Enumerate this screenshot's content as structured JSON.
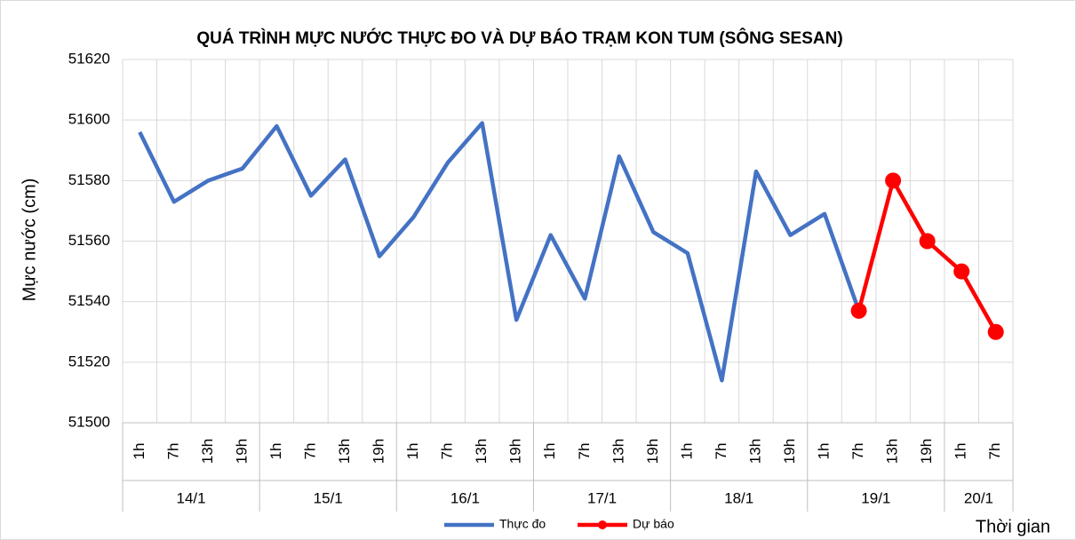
{
  "chart_data": {
    "type": "line",
    "title": "QUÁ TRÌNH MỰC NƯỚC THỰC ĐO VÀ DỰ BÁO TRẠM KON TUM (SÔNG SESAN)",
    "y_label": "Mực nước (cm)",
    "x_label": "Thời gian",
    "categories": [
      "1h",
      "7h",
      "13h",
      "19h",
      "1h",
      "7h",
      "13h",
      "19h",
      "1h",
      "7h",
      "13h",
      "19h",
      "1h",
      "7h",
      "13h",
      "19h",
      "1h",
      "7h",
      "13h",
      "19h",
      "1h",
      "7h",
      "13h",
      "19h",
      "1h",
      "7h"
    ],
    "groups": [
      "14/1",
      "15/1",
      "16/1",
      "17/1",
      "18/1",
      "19/1",
      "20/1"
    ],
    "series": [
      {
        "name": "Thực đo",
        "color": "#4472c4",
        "values": [
          51596,
          51573,
          51580,
          51584,
          51598,
          51575,
          51587,
          51555,
          51568,
          51586,
          51599,
          51534,
          51562,
          51541,
          51588,
          51563,
          51556,
          51514,
          51583,
          51562,
          51569,
          51537,
          null,
          null,
          null,
          null
        ]
      },
      {
        "name": "Dự báo",
        "color": "#ff0000",
        "markers": true,
        "values": [
          null,
          null,
          null,
          null,
          null,
          null,
          null,
          null,
          null,
          null,
          null,
          null,
          null,
          null,
          null,
          null,
          null,
          null,
          null,
          null,
          null,
          51537,
          51580,
          51560,
          51550,
          51530
        ]
      }
    ],
    "ylim": [
      51500,
      51620
    ],
    "yticks": [
      51500,
      51520,
      51540,
      51560,
      51580,
      51600,
      51620
    ],
    "grid": true
  }
}
